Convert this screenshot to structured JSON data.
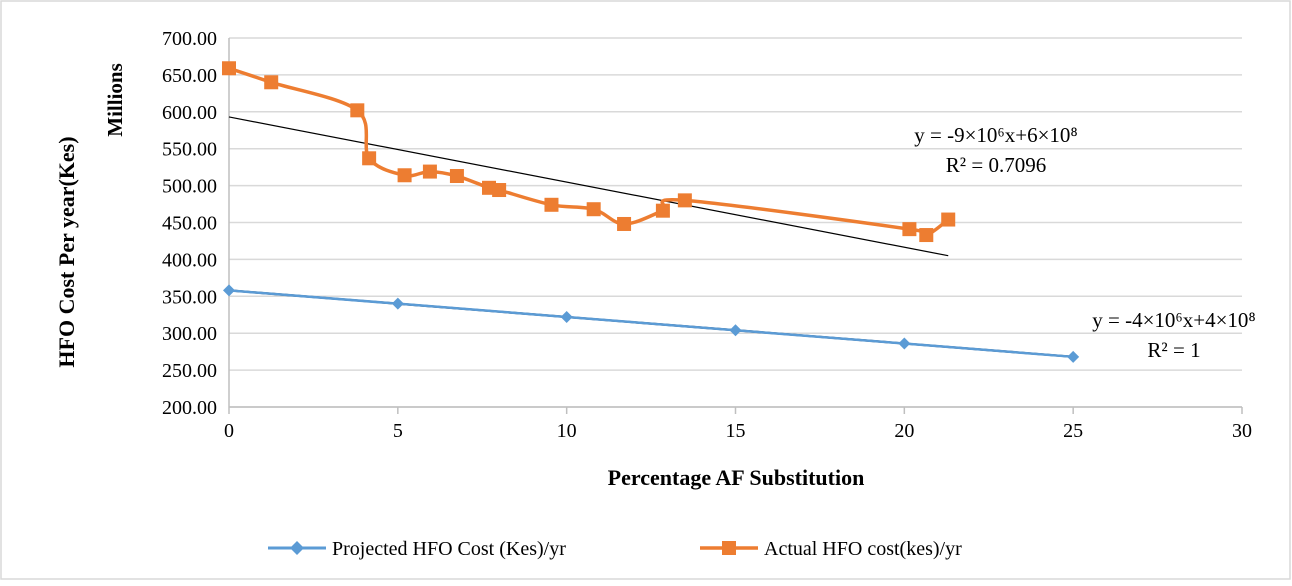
{
  "chart_data": {
    "type": "line",
    "title": "",
    "xlabel": "Percentage AF Substitution",
    "ylabel": "HFO Cost Per year(Kes)",
    "y_units": "Millions",
    "xlim": [
      0,
      30
    ],
    "ylim": [
      200,
      700
    ],
    "x_ticks": [
      "0",
      "5",
      "10",
      "15",
      "20",
      "25",
      "30"
    ],
    "y_ticks": [
      "200.00",
      "250.00",
      "300.00",
      "350.00",
      "400.00",
      "450.00",
      "500.00",
      "550.00",
      "600.00",
      "650.00",
      "700.00"
    ],
    "grid": "horizontal",
    "legend_position": "bottom",
    "colors": {
      "projected": "#5B9BD5",
      "actual": "#ED7D31",
      "trendline": "#000000"
    },
    "series": [
      {
        "name": "Projected HFO Cost  (Kes)/yr",
        "marker": "diamond",
        "smooth": false,
        "x": [
          0,
          5,
          10,
          15,
          20,
          25
        ],
        "y": [
          358,
          340,
          322,
          304,
          286,
          268
        ]
      },
      {
        "name": "Actual  HFO cost(kes)/yr",
        "marker": "square",
        "smooth": true,
        "x": [
          0,
          1.25,
          3.8,
          4.15,
          5.2,
          5.95,
          6.75,
          7.7,
          8.0,
          9.55,
          10.8,
          11.7,
          12.85,
          13.5,
          20.15,
          20.65,
          21.3
        ],
        "y": [
          659,
          640,
          602,
          537,
          514,
          519,
          513,
          497,
          494,
          474,
          468,
          448,
          466,
          480,
          441,
          433,
          454
        ]
      }
    ],
    "trendlines": [
      {
        "series": "Actual  HFO cost(kes)/yr",
        "x": [
          0,
          21.3
        ],
        "y": [
          593,
          405
        ],
        "equation": "y = -9×10⁶x+6×10⁸",
        "r2": "R² = 0.7096"
      },
      {
        "series": "Projected HFO Cost  (Kes)/yr",
        "x": [
          0,
          25
        ],
        "y": [
          358,
          268
        ],
        "equation": "y = -4×10⁶x+4×10⁸",
        "r2": "R² = 1"
      }
    ]
  }
}
